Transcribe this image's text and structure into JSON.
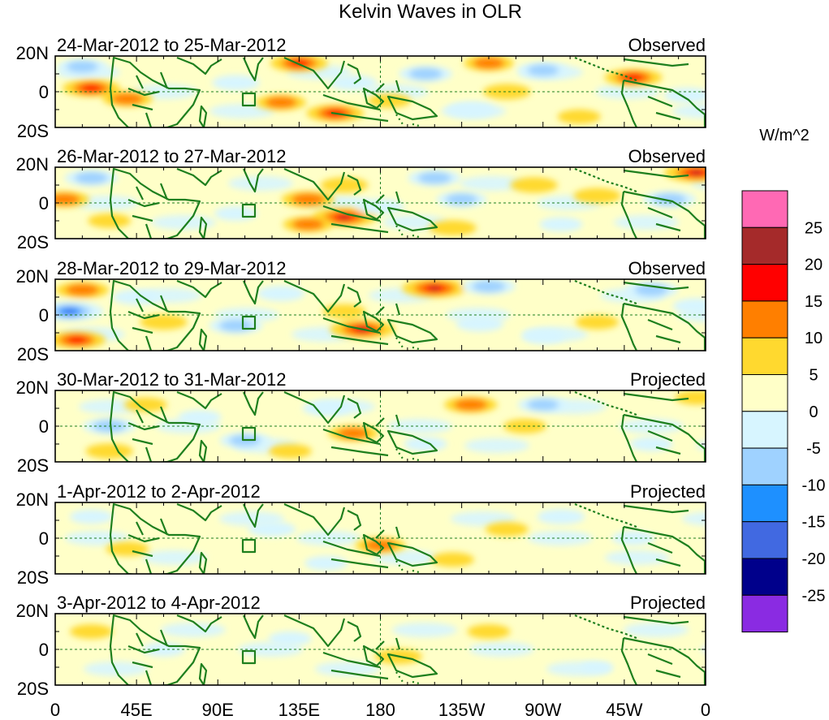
{
  "chart_data": {
    "type": "heatmap",
    "title": "Kelvin Waves in OLR",
    "units": "W/m^2",
    "x_ticks": [
      "0",
      "45E",
      "90E",
      "135E",
      "180",
      "135W",
      "90W",
      "45W",
      "0"
    ],
    "y_ticks": [
      "20N",
      "0",
      "20S"
    ],
    "xlim": [
      0,
      360
    ],
    "ylim": [
      -20,
      20
    ],
    "colorbar": {
      "levels": [
        "25",
        "20",
        "15",
        "10",
        "5",
        "0",
        "-5",
        "-10",
        "-15",
        "-20",
        "-25"
      ],
      "colors": [
        "#ff69b4",
        "#a52a2a",
        "#ff0000",
        "#ff7f00",
        "#ffd92f",
        "#ffffc8",
        "#d7f5ff",
        "#9fd2ff",
        "#1e90ff",
        "#4169e1",
        "#00008b",
        "#8a2be2"
      ]
    },
    "panels": [
      {
        "period": "24-Mar-2012 to 25-Mar-2012",
        "status": "Observed",
        "features": [
          {
            "lon": 20,
            "lat": 2,
            "value": 15
          },
          {
            "lon": 40,
            "lat": -4,
            "value": 10
          },
          {
            "lon": 15,
            "lat": 14,
            "value": -10
          },
          {
            "lon": 100,
            "lat": 5,
            "value": -8
          },
          {
            "lon": 135,
            "lat": 16,
            "value": 15
          },
          {
            "lon": 155,
            "lat": -12,
            "value": 15
          },
          {
            "lon": 125,
            "lat": -6,
            "value": 10
          },
          {
            "lon": 165,
            "lat": 5,
            "value": -8
          },
          {
            "lon": 205,
            "lat": 10,
            "value": -12
          },
          {
            "lon": 185,
            "lat": -5,
            "value": 5
          },
          {
            "lon": 240,
            "lat": 16,
            "value": 10
          },
          {
            "lon": 230,
            "lat": -10,
            "value": -8
          },
          {
            "lon": 250,
            "lat": 0,
            "value": 8
          },
          {
            "lon": 270,
            "lat": 12,
            "value": -10
          },
          {
            "lon": 320,
            "lat": 8,
            "value": 15
          },
          {
            "lon": 290,
            "lat": -14,
            "value": 5
          },
          {
            "lon": 350,
            "lat": -2,
            "value": -8
          }
        ]
      },
      {
        "period": "26-Mar-2012 to 27-Mar-2012",
        "status": "Observed",
        "features": [
          {
            "lon": 5,
            "lat": 2,
            "value": 10
          },
          {
            "lon": 20,
            "lat": 14,
            "value": -12
          },
          {
            "lon": 30,
            "lat": -10,
            "value": 5
          },
          {
            "lon": 140,
            "lat": 2,
            "value": 12
          },
          {
            "lon": 160,
            "lat": 10,
            "value": 8
          },
          {
            "lon": 160,
            "lat": -8,
            "value": 20
          },
          {
            "lon": 140,
            "lat": -12,
            "value": 10
          },
          {
            "lon": 210,
            "lat": 14,
            "value": -12
          },
          {
            "lon": 180,
            "lat": -2,
            "value": -8
          },
          {
            "lon": 225,
            "lat": 2,
            "value": -10
          },
          {
            "lon": 265,
            "lat": 10,
            "value": 8
          },
          {
            "lon": 300,
            "lat": 4,
            "value": 8
          },
          {
            "lon": 355,
            "lat": 17,
            "value": 20
          },
          {
            "lon": 340,
            "lat": 2,
            "value": -12
          },
          {
            "lon": 100,
            "lat": -6,
            "value": -5
          },
          {
            "lon": 220,
            "lat": -14,
            "value": 8
          },
          {
            "lon": 280,
            "lat": -12,
            "value": -5
          }
        ]
      },
      {
        "period": "28-Mar-2012 to 29-Mar-2012",
        "status": "Observed",
        "features": [
          {
            "lon": 8,
            "lat": 2,
            "value": -22
          },
          {
            "lon": 15,
            "lat": 14,
            "value": 12
          },
          {
            "lon": 12,
            "lat": -14,
            "value": 15
          },
          {
            "lon": 45,
            "lat": 10,
            "value": -8
          },
          {
            "lon": 60,
            "lat": -4,
            "value": 8
          },
          {
            "lon": 100,
            "lat": -6,
            "value": -12
          },
          {
            "lon": 125,
            "lat": 12,
            "value": -8
          },
          {
            "lon": 170,
            "lat": -8,
            "value": 20
          },
          {
            "lon": 160,
            "lat": 2,
            "value": 5
          },
          {
            "lon": 210,
            "lat": 15,
            "value": 20
          },
          {
            "lon": 240,
            "lat": 16,
            "value": -12
          },
          {
            "lon": 235,
            "lat": -5,
            "value": -8
          },
          {
            "lon": 330,
            "lat": 14,
            "value": -12
          },
          {
            "lon": 355,
            "lat": 5,
            "value": -8
          },
          {
            "lon": 300,
            "lat": -4,
            "value": 5
          },
          {
            "lon": 270,
            "lat": -12,
            "value": -5
          }
        ]
      },
      {
        "period": "30-Mar-2012 to 31-Mar-2012",
        "status": "Projected",
        "features": [
          {
            "lon": 30,
            "lat": 0,
            "value": -12
          },
          {
            "lon": 30,
            "lat": -14,
            "value": 8
          },
          {
            "lon": 50,
            "lat": 12,
            "value": 5
          },
          {
            "lon": 80,
            "lat": 5,
            "value": -5
          },
          {
            "lon": 105,
            "lat": -8,
            "value": -10
          },
          {
            "lon": 150,
            "lat": 10,
            "value": -8
          },
          {
            "lon": 165,
            "lat": -4,
            "value": 10
          },
          {
            "lon": 130,
            "lat": -14,
            "value": 5
          },
          {
            "lon": 230,
            "lat": 12,
            "value": 12
          },
          {
            "lon": 270,
            "lat": 12,
            "value": -10
          },
          {
            "lon": 205,
            "lat": -10,
            "value": -5
          },
          {
            "lon": 260,
            "lat": 0,
            "value": 5
          },
          {
            "lon": 355,
            "lat": 16,
            "value": 5
          },
          {
            "lon": 330,
            "lat": -10,
            "value": -5
          }
        ]
      },
      {
        "period": "1-Apr-2012 to 2-Apr-2012",
        "status": "Projected",
        "features": [
          {
            "lon": 180,
            "lat": -4,
            "value": 10
          },
          {
            "lon": 120,
            "lat": 5,
            "value": -8
          },
          {
            "lon": 280,
            "lat": 12,
            "value": -8
          },
          {
            "lon": 250,
            "lat": 5,
            "value": 5
          },
          {
            "lon": 20,
            "lat": 12,
            "value": -5
          },
          {
            "lon": 40,
            "lat": -6,
            "value": 5
          },
          {
            "lon": 150,
            "lat": -14,
            "value": -5
          },
          {
            "lon": 220,
            "lat": -12,
            "value": 5
          },
          {
            "lon": 320,
            "lat": 0,
            "value": -5
          }
        ]
      },
      {
        "period": "3-Apr-2012 to 4-Apr-2012",
        "status": "Projected",
        "features": [
          {
            "lon": 190,
            "lat": -4,
            "value": 8
          },
          {
            "lon": 60,
            "lat": 0,
            "value": -5
          },
          {
            "lon": 130,
            "lat": 6,
            "value": -5
          },
          {
            "lon": 20,
            "lat": 10,
            "value": 5
          },
          {
            "lon": 240,
            "lat": 10,
            "value": 5
          },
          {
            "lon": 300,
            "lat": -10,
            "value": -4
          },
          {
            "lon": 100,
            "lat": -14,
            "value": 4
          }
        ]
      }
    ]
  }
}
